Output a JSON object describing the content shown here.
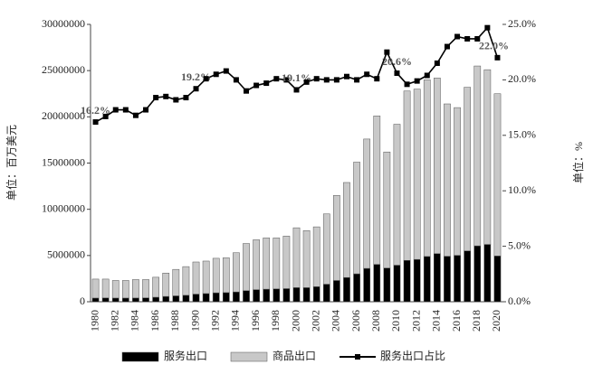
{
  "chart_data": {
    "type": "bar",
    "stacked": true,
    "categories": [
      "1980",
      null,
      "1982",
      null,
      "1984",
      null,
      "1986",
      null,
      "1988",
      null,
      "1990",
      null,
      "1992",
      null,
      "1994",
      null,
      "1996",
      null,
      "1998",
      null,
      "2000",
      null,
      "2002",
      null,
      "2004",
      null,
      "2006",
      null,
      "2008",
      null,
      "2010",
      null,
      "2012",
      null,
      "2014",
      null,
      "2016",
      null,
      "2018",
      null,
      "2020"
    ],
    "series": [
      {
        "name": "服务出口",
        "color": "#000000",
        "values": [
          397000,
          409000,
          398000,
          398000,
          403000,
          415000,
          488000,
          574000,
          637000,
          699000,
          826000,
          884000,
          964000,
          988000,
          1060000,
          1197000,
          1307000,
          1359000,
          1387000,
          1420000,
          1528000,
          1525000,
          1628000,
          1900000,
          2300000,
          2619000,
          3020000,
          3608000,
          4040000,
          3645000,
          3955000,
          4469000,
          4577000,
          4896000,
          5203000,
          4922000,
          5019000,
          5498000,
          6044000,
          6200000,
          4950000
        ]
      },
      {
        "name": "商品出口",
        "color": "#c8c8c8",
        "values": [
          2053000,
          2041000,
          1902000,
          1902000,
          1997000,
          1985000,
          2162000,
          2526000,
          2863000,
          3101000,
          3474000,
          3516000,
          3736000,
          3762000,
          4240000,
          5103000,
          5393000,
          5541000,
          5513000,
          5680000,
          6472000,
          6175000,
          6472000,
          7600000,
          9200000,
          10281000,
          12080000,
          13992000,
          16060000,
          12555000,
          15245000,
          18331000,
          18423000,
          19104000,
          18997000,
          16478000,
          15981000,
          17702000,
          19456000,
          18900000,
          17550000
        ]
      },
      {
        "name": "服务出口占比",
        "type": "line",
        "axis": "y2",
        "color": "#000000",
        "values": [
          16.2,
          16.7,
          17.3,
          17.3,
          16.8,
          17.3,
          18.4,
          18.5,
          18.2,
          18.4,
          19.2,
          20.1,
          20.5,
          20.8,
          20.0,
          19.0,
          19.5,
          19.7,
          20.1,
          20.0,
          19.1,
          19.8,
          20.1,
          20.0,
          20.0,
          20.3,
          20.0,
          20.5,
          20.1,
          22.5,
          20.6,
          19.6,
          19.9,
          20.4,
          21.5,
          23.0,
          23.9,
          23.7,
          23.7,
          24.7,
          22.0
        ],
        "value_labels": [
          "16.2%",
          null,
          null,
          null,
          null,
          null,
          null,
          null,
          null,
          null,
          "19.2%",
          null,
          null,
          null,
          null,
          null,
          null,
          null,
          null,
          null,
          "19.1%",
          null,
          null,
          null,
          null,
          null,
          null,
          null,
          null,
          null,
          "20.6%",
          null,
          null,
          null,
          null,
          null,
          null,
          null,
          null,
          null,
          "22.0%"
        ]
      }
    ],
    "ylabel": "单位：百万美元",
    "y2label": "单位：%",
    "ylim": [
      0,
      30000000
    ],
    "yticks": [
      0,
      5000000,
      10000000,
      15000000,
      20000000,
      25000000,
      30000000
    ],
    "y2lim": [
      0,
      25
    ],
    "y2ticks": [
      {
        "value": 0,
        "label": "0.0%"
      },
      {
        "value": 5,
        "label": "5.0%"
      },
      {
        "value": 10,
        "label": "10.0%"
      },
      {
        "value": 15,
        "label": "15.0%"
      },
      {
        "value": 20,
        "label": "20.0%"
      },
      {
        "value": 25,
        "label": "25.0%"
      }
    ],
    "legend": "bottom"
  }
}
